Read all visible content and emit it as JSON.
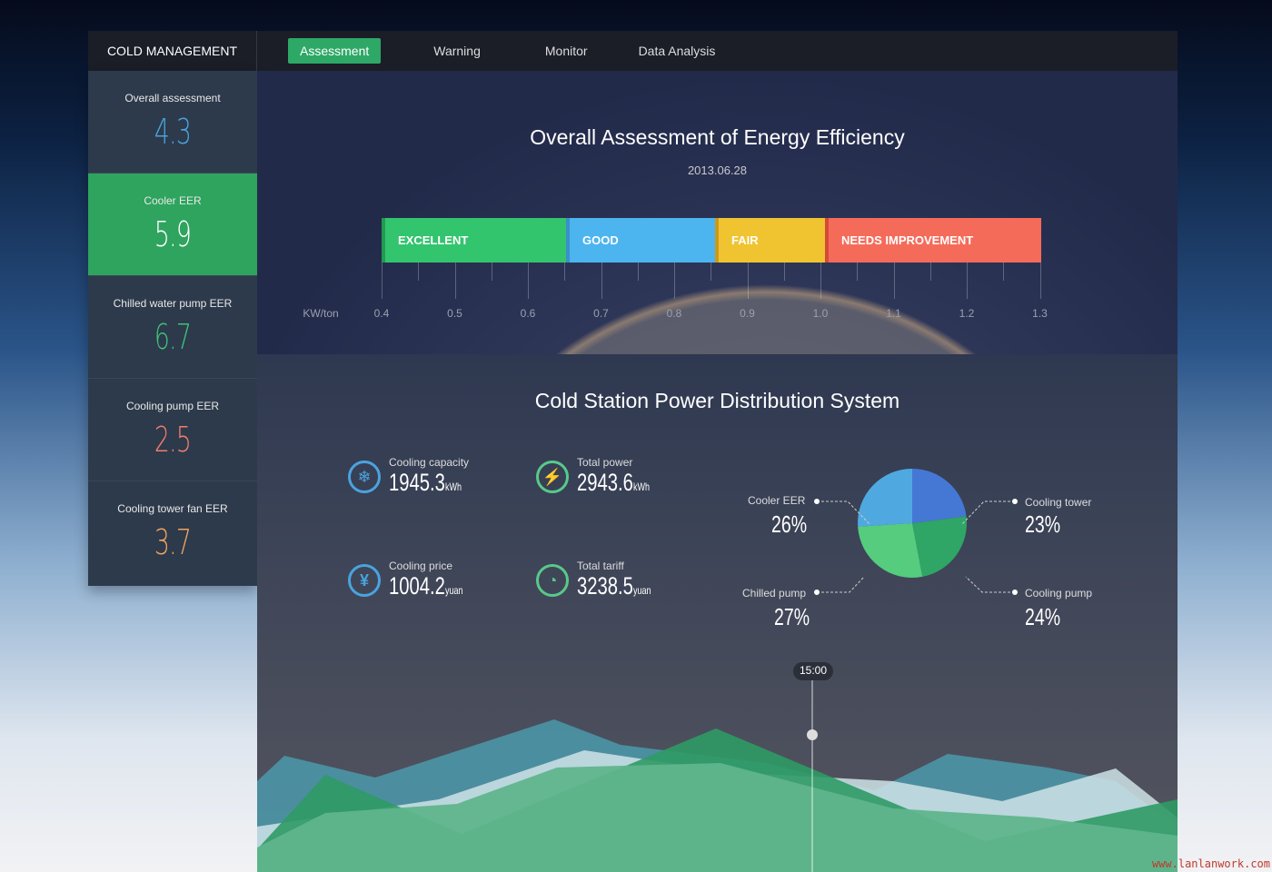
{
  "nav": {
    "brand": "COLD MANAGEMENT",
    "tabs": [
      "Assessment",
      "Warning",
      "Monitor",
      "Data Analysis"
    ],
    "active": "Assessment"
  },
  "sidebar": [
    {
      "label": "Overall assessment",
      "value": "4.3",
      "color": "#4aa3df"
    },
    {
      "label": "Cooler EER",
      "value": "5.9",
      "color": "#ffffff"
    },
    {
      "label": "Chilled water pump EER",
      "value": "6.7",
      "color": "#3ec27a"
    },
    {
      "label": "Cooling pump EER",
      "value": "2.5",
      "color": "#f07e6e"
    },
    {
      "label": "Cooling tower fan EER",
      "value": "3.7",
      "color": "#f0a35e"
    }
  ],
  "hero": {
    "title": "Overall Assessment of Energy Efficiency",
    "date": "2013.06.28",
    "bands": [
      {
        "label": "EXCELLENT",
        "color": "#33c46e"
      },
      {
        "label": "GOOD",
        "color": "#4cb4ef"
      },
      {
        "label": "FAIR",
        "color": "#f0c431"
      },
      {
        "label": "NEEDS IMPROVEMENT",
        "color": "#f56b5a"
      }
    ],
    "unit": "KW/ton",
    "ticks": [
      "0.4",
      "0.5",
      "0.6",
      "0.7",
      "0.8",
      "0.9",
      "1.0",
      "1.1",
      "1.2",
      "1.3"
    ]
  },
  "distribution": {
    "title": "Cold Station Power Distribution System",
    "stats": [
      {
        "label": "Cooling capacity",
        "value": "1945.3",
        "unit": "kWh",
        "icon": "snowflake-icon"
      },
      {
        "label": "Total power",
        "value": "2943.6",
        "unit": "kWh",
        "icon": "lightning-icon"
      },
      {
        "label": "Cooling price",
        "value": "1004.2",
        "unit": "yuan",
        "icon": "yuan-icon"
      },
      {
        "label": "Total tariff",
        "value": "3238.5",
        "unit": "yuan",
        "icon": "gauge-icon"
      }
    ],
    "pie": [
      {
        "label": "Cooling tower",
        "value": "23%",
        "pct": 23,
        "color": "#4578d4"
      },
      {
        "label": "Cooling pump",
        "value": "24%",
        "pct": 24,
        "color": "#2fa566"
      },
      {
        "label": "Chilled pump",
        "value": "27%",
        "pct": 27,
        "color": "#55cc7e"
      },
      {
        "label": "Cooler EER",
        "value": "26%",
        "pct": 26,
        "color": "#4fa9e0"
      }
    ],
    "time": "15:00"
  },
  "watermark": "www.lanlanwork.com"
}
